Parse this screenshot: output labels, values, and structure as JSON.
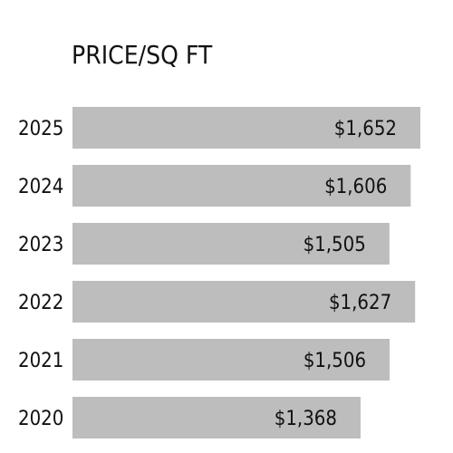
{
  "chart_data": {
    "type": "bar",
    "orientation": "horizontal",
    "title": "PRICE/SQ FT",
    "categories": [
      "2025",
      "2024",
      "2023",
      "2022",
      "2021",
      "2020"
    ],
    "values": [
      1652,
      1606,
      1505,
      1627,
      1506,
      1368
    ],
    "value_labels": [
      "$1,652",
      "$1,606",
      "$1,505",
      "$1,627",
      "$1,506",
      "$1,368"
    ],
    "xlabel": "",
    "ylabel": "",
    "grid": false,
    "bar_color": "#bdbdbd",
    "text_color": "#111111"
  }
}
